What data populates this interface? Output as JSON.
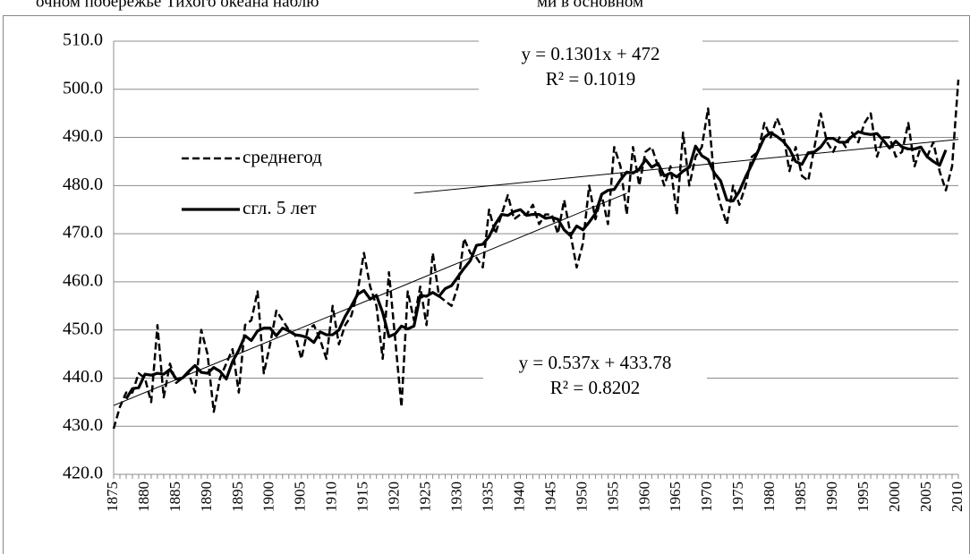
{
  "page_fragments": [
    "очном побережье Тихого океана наблю",
    "ми в основном"
  ],
  "chart_data": {
    "type": "line",
    "x": [
      1875,
      1876,
      1877,
      1878,
      1879,
      1880,
      1881,
      1882,
      1883,
      1884,
      1885,
      1886,
      1887,
      1888,
      1889,
      1890,
      1891,
      1892,
      1893,
      1894,
      1895,
      1896,
      1897,
      1898,
      1899,
      1900,
      1901,
      1902,
      1903,
      1904,
      1905,
      1906,
      1907,
      1908,
      1909,
      1910,
      1911,
      1912,
      1913,
      1914,
      1915,
      1916,
      1917,
      1918,
      1919,
      1920,
      1921,
      1922,
      1923,
      1924,
      1925,
      1926,
      1927,
      1928,
      1929,
      1930,
      1931,
      1932,
      1933,
      1934,
      1935,
      1936,
      1937,
      1938,
      1939,
      1940,
      1941,
      1942,
      1943,
      1944,
      1945,
      1946,
      1947,
      1948,
      1949,
      1950,
      1951,
      1952,
      1953,
      1954,
      1955,
      1956,
      1957,
      1958,
      1959,
      1960,
      1961,
      1962,
      1963,
      1964,
      1965,
      1966,
      1967,
      1968,
      1969,
      1970,
      1971,
      1972,
      1973,
      1974,
      1975,
      1976,
      1977,
      1978,
      1979,
      1980,
      1981,
      1982,
      1983,
      1984,
      1985,
      1986,
      1987,
      1988,
      1989,
      1990,
      1991,
      1992,
      1993,
      1994,
      1995,
      1996,
      1997,
      1998,
      1999,
      2000,
      2001,
      2002,
      2003,
      2004,
      2005,
      2006,
      2007,
      2008,
      2009,
      2010
    ],
    "series": [
      {
        "name": "среднегод",
        "style": "dashed",
        "color": "#000000",
        "values": [
          429.5,
          434,
          437,
          437,
          441,
          440,
          435,
          451,
          436,
          443,
          439,
          440,
          441,
          437,
          450,
          445,
          433,
          440,
          443,
          446,
          437,
          451,
          452,
          458,
          441,
          447,
          454,
          452,
          450,
          449,
          444,
          450,
          451,
          448,
          444,
          455,
          447,
          451,
          453,
          458,
          466,
          459,
          455,
          444,
          462,
          448,
          434,
          458,
          452,
          459,
          451,
          466,
          457,
          456,
          455,
          459,
          469,
          466,
          465,
          463,
          475,
          470,
          474,
          478,
          473,
          474,
          474,
          476,
          472,
          474,
          474,
          470,
          477,
          470,
          463,
          468,
          480,
          473,
          478,
          472,
          488,
          484,
          474,
          488,
          480,
          487,
          488,
          484,
          480,
          484,
          474,
          491,
          480,
          486,
          488,
          496,
          481,
          476,
          472,
          480,
          476,
          480,
          486,
          487,
          493,
          490,
          494,
          491,
          483,
          488,
          482,
          481,
          488,
          495,
          489,
          487,
          490,
          488,
          491,
          489,
          493,
          495,
          486,
          490,
          490,
          486,
          487,
          493,
          484,
          488,
          486,
          489,
          483,
          479,
          484,
          502
        ]
      },
      {
        "name": "сгл. 5 лет",
        "style": "solid",
        "color": "#000000",
        "values": [
          null,
          null,
          435.7,
          437.8,
          438,
          440.8,
          440.6,
          441,
          440.8,
          441.8,
          439.8,
          440,
          441.4,
          442.6,
          441.2,
          441,
          442.2,
          441.4,
          439.8,
          443.4,
          445.8,
          448.8,
          447.8,
          449.8,
          450.4,
          450.4,
          448.8,
          450.4,
          449.8,
          449,
          448.8,
          448.4,
          447.4,
          449.6,
          449,
          449,
          450,
          452.8,
          455,
          457.4,
          458.2,
          456.4,
          457.2,
          453.6,
          448.6,
          449.2,
          450.8,
          450.2,
          450.8,
          457.2,
          457,
          457.8,
          457,
          458.6,
          459.2,
          461,
          462.8,
          464.4,
          467.6,
          467.8,
          469.4,
          472,
          474,
          473.8,
          474.6,
          475,
          473.8,
          474,
          474,
          473.2,
          473.4,
          473,
          470.8,
          469.6,
          471.6,
          470.8,
          472.4,
          474.2,
          478.2,
          479,
          479.2,
          481.2,
          482.8,
          482.6,
          483.4,
          485.4,
          483.8,
          484.6,
          482,
          482.6,
          481.8,
          483,
          483.8,
          488.2,
          486.2,
          485.4,
          482.6,
          481,
          477,
          476.8,
          478.8,
          481.8,
          484.4,
          487.2,
          490,
          491,
          490.2,
          489.2,
          487.6,
          485,
          484.4,
          486.8,
          487,
          488,
          489.8,
          489.8,
          489,
          489,
          490.2,
          491.2,
          490.8,
          490.6,
          490.8,
          489.4,
          487.8,
          489.2,
          488,
          487.6,
          487.6,
          488,
          486,
          485,
          484.2,
          487.4,
          null,
          null
        ]
      }
    ],
    "trendlines": [
      {
        "equation": "y = 0.537x + 433.78",
        "r2": "R² = 0.8202",
        "x": [
          1875,
          1957
        ],
        "values": [
          434.3,
          478.4
        ]
      },
      {
        "equation": "y = 0.1301x + 472",
        "r2": "R² = 0.1019",
        "x": [
          1923,
          2010
        ],
        "values": [
          478.4,
          489.6
        ]
      }
    ],
    "xlim": [
      1875,
      2010
    ],
    "xticks": [
      1875,
      1880,
      1885,
      1890,
      1895,
      1900,
      1905,
      1910,
      1915,
      1920,
      1925,
      1930,
      1935,
      1940,
      1945,
      1950,
      1955,
      1960,
      1965,
      1970,
      1975,
      1980,
      1985,
      1990,
      1995,
      2000,
      2005,
      2010
    ],
    "ylim": [
      420,
      510
    ],
    "yticks": [
      {
        "value": 420,
        "label": "420.0"
      },
      {
        "value": 430,
        "label": "430.0"
      },
      {
        "value": 440,
        "label": "440.0"
      },
      {
        "value": 450,
        "label": "450.0"
      },
      {
        "value": 460,
        "label": "460.0"
      },
      {
        "value": 470,
        "label": "470.0"
      },
      {
        "value": 480,
        "label": "480.0"
      },
      {
        "value": 490,
        "label": "490.0"
      },
      {
        "value": 500,
        "label": "500.0"
      },
      {
        "value": 510,
        "label": "510.0"
      }
    ],
    "grid": true
  }
}
